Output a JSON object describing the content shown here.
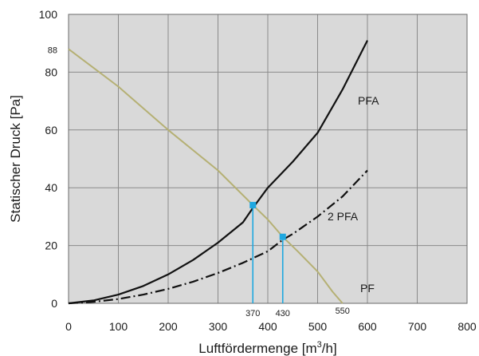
{
  "chart_data": {
    "type": "line",
    "xlabel": "Luftfördermenge [m",
    "xlabel_sup": "3",
    "xlabel_end": "/h]",
    "ylabel": "Statischer Druck [Pa]",
    "xlim": [
      0,
      800
    ],
    "ylim": [
      0,
      100
    ],
    "xticks": [
      "0",
      "100",
      "200",
      "300",
      "400",
      "500",
      "600",
      "700",
      "800"
    ],
    "yticks": [
      "0",
      "20",
      "40",
      "60",
      "80",
      "100"
    ],
    "ytick_extra": "88",
    "grid": true,
    "background": "#d9d9d9",
    "series": [
      {
        "name": "PFA",
        "style": "solid",
        "color": "#111111",
        "x": [
          0,
          50,
          100,
          150,
          200,
          250,
          300,
          350,
          370,
          400,
          450,
          500,
          550,
          600
        ],
        "y": [
          0,
          1,
          3,
          6,
          10,
          15,
          21,
          28,
          33,
          40,
          49,
          59,
          74,
          91
        ]
      },
      {
        "name": "2 PFA",
        "style": "dashdot",
        "color": "#111111",
        "x": [
          0,
          50,
          100,
          150,
          200,
          250,
          300,
          350,
          400,
          430,
          450,
          500,
          550,
          600
        ],
        "y": [
          0,
          0.5,
          1.5,
          3,
          5,
          7.5,
          10.5,
          14,
          18,
          22,
          24,
          30,
          37,
          46
        ]
      },
      {
        "name": "PF",
        "style": "solid",
        "color": "#b5b074",
        "x": [
          0,
          100,
          200,
          300,
          370,
          400,
          430,
          460,
          500,
          530,
          550
        ],
        "y": [
          88,
          75,
          60,
          46,
          34,
          29,
          23,
          18,
          11,
          4,
          0
        ]
      }
    ],
    "markers": [
      {
        "x": 370,
        "y": 34,
        "label": "370"
      },
      {
        "x": 430,
        "y": 23,
        "label": "430"
      }
    ],
    "annotation_550": "550",
    "marker_color": "#1fa8e0"
  }
}
